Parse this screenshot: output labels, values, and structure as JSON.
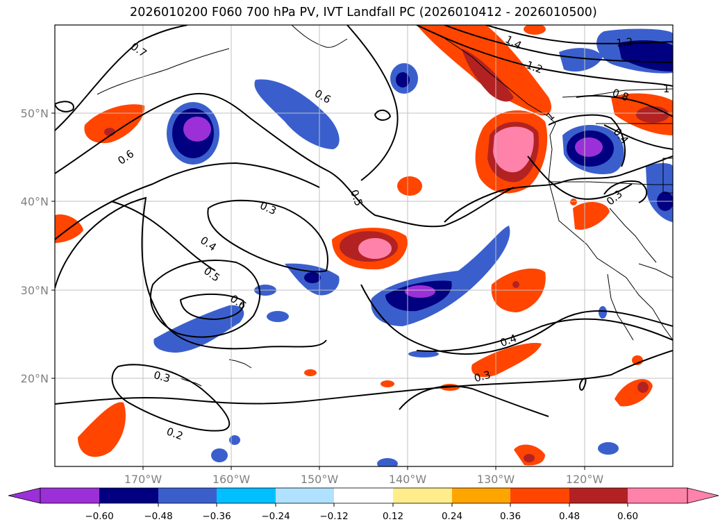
{
  "title": "2026010200 F060 700 hPa PV, IVT Landfall PC (2026010412 - 2026010500)",
  "map": {
    "lon_ticks": [
      "170°W",
      "160°W",
      "150°W",
      "140°W",
      "130°W",
      "120°W"
    ],
    "lat_ticks": [
      "50°N",
      "40°N",
      "30°N",
      "20°N"
    ]
  },
  "contour_labels": [
    "0.7",
    "0.6",
    "0.6",
    "0.5",
    "0.3",
    "0.4",
    "0.5",
    "0.6",
    "0.4",
    "0.3",
    "0.3",
    "0.2",
    "1.4",
    "1.2",
    "1.2",
    "0.8",
    "1",
    "0.4",
    "0.3",
    "1"
  ],
  "colorbar": {
    "colors": [
      "#9b30d8",
      "#000080",
      "#3a5fcd",
      "#00bfff",
      "#b0e2ff",
      "#ffffff",
      "#ffec8b",
      "#ffa500",
      "#ff4500",
      "#b22222",
      "#ff82ab"
    ],
    "tick_labels": [
      "−0.60",
      "−0.48",
      "−0.36",
      "−0.24",
      "−0.12",
      "0.12",
      "0.24",
      "0.36",
      "0.48",
      "0.60"
    ]
  }
}
